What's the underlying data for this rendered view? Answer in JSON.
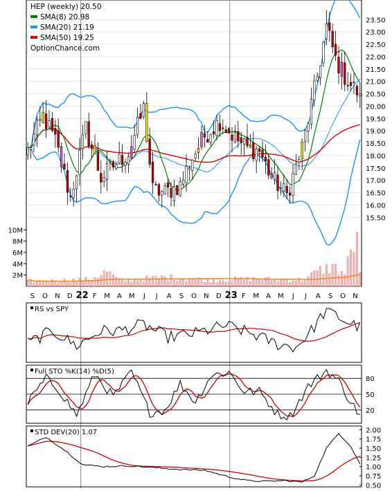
{
  "colors": {
    "background": "#ffffff",
    "frame": "#000000",
    "grid": "#dddddd",
    "candle_up": "#000000",
    "candle_down": "#cc0000",
    "sma8": "#008000",
    "sma20": "#1e90ff",
    "sma50": "#dd0000",
    "highlight_yellow": "#ffee00",
    "highlight_magenta": "#dd66cc",
    "volume_bar": "#f2b3b3",
    "volume_avg": "#ff7f00",
    "rs_line": "#000000",
    "rs_ma": "#cc0000",
    "sto_k": "#000000",
    "sto_d": "#cc0000",
    "std_line": "#000000",
    "std_ma": "#cc0000"
  },
  "legend": [
    {
      "label": "HEP (weekly) 20.50",
      "icon": "none",
      "color": "#000000"
    },
    {
      "label": "SMA(8) 20.98",
      "icon": "legend-swatch",
      "color": "#008000"
    },
    {
      "label": "SMA(20) 21.19",
      "icon": "legend-swatch",
      "color": "#1e90ff"
    },
    {
      "label": "SMA(50) 19.25",
      "icon": "legend-swatch",
      "color": "#dd0000"
    },
    {
      "label": "OptionChance.com",
      "icon": "none",
      "color": "#000000"
    }
  ],
  "chart_data": [
    {
      "type": "candlestick",
      "title": "HEP (weekly) 20.50",
      "x_axis": {
        "labels": [
          "S",
          "O",
          "N",
          "D",
          "22",
          "F",
          "M",
          "A",
          "M",
          "J",
          "J",
          "A",
          "S",
          "O",
          "N",
          "D",
          "23",
          "F",
          "M",
          "A",
          "M",
          "J",
          "J",
          "A",
          "S",
          "O",
          "N"
        ],
        "bold": [
          "22",
          "23"
        ]
      },
      "y_axis": {
        "ticks": [
          15.5,
          16.0,
          16.5,
          17.0,
          17.5,
          18.0,
          18.5,
          19.0,
          19.5,
          20.0,
          20.5,
          21.0,
          21.5,
          22.0,
          22.5,
          23.0,
          23.5
        ],
        "range": [
          15.2,
          23.9
        ]
      },
      "series": [
        {
          "name": "HEP (weekly)",
          "last": 20.5,
          "ohlc_anchors": [
            {
              "t": 0,
              "c": 18.2
            },
            {
              "t": 5,
              "c": 19.6
            },
            {
              "t": 9,
              "c": 18.6
            },
            {
              "t": 14,
              "c": 16.3
            },
            {
              "t": 19,
              "c": 19.1
            },
            {
              "t": 24,
              "c": 17.1
            },
            {
              "t": 28,
              "c": 17.6
            },
            {
              "t": 33,
              "c": 18.1
            },
            {
              "t": 38,
              "c": 19.9
            },
            {
              "t": 41,
              "c": 16.6
            },
            {
              "t": 45,
              "c": 16.5
            },
            {
              "t": 50,
              "c": 16.8
            },
            {
              "t": 53,
              "c": 17.7
            },
            {
              "t": 58,
              "c": 18.8
            },
            {
              "t": 63,
              "c": 19.4
            },
            {
              "t": 68,
              "c": 18.7
            },
            {
              "t": 72,
              "c": 18.3
            },
            {
              "t": 76,
              "c": 18.2
            },
            {
              "t": 80,
              "c": 17.1
            },
            {
              "t": 85,
              "c": 16.4
            },
            {
              "t": 90,
              "c": 18.3
            },
            {
              "t": 95,
              "c": 21.2
            },
            {
              "t": 98,
              "c": 23.2
            },
            {
              "t": 101,
              "c": 21.9
            },
            {
              "t": 104,
              "c": 21.2
            },
            {
              "t": 107,
              "c": 20.7
            },
            {
              "t": 109,
              "c": 20.5
            }
          ]
        },
        {
          "name": "SMA(8)",
          "last": 20.98
        },
        {
          "name": "SMA(20)",
          "last": 21.19
        },
        {
          "name": "SMA(50)",
          "last": 19.25
        }
      ]
    },
    {
      "type": "bar",
      "title": "",
      "y_axis": {
        "ticks": [
          {
            "v": 2000000,
            "label": "2M"
          },
          {
            "v": 4000000,
            "label": "4M"
          },
          {
            "v": 6000000,
            "label": "6M"
          },
          {
            "v": 8000000,
            "label": "8M"
          },
          {
            "v": 10000000,
            "label": "10M"
          }
        ],
        "range": [
          0,
          11500000
        ]
      },
      "series": [
        {
          "name": "Volume",
          "anchors": [
            {
              "t": 0,
              "v": 0.8
            },
            {
              "t": 20,
              "v": 1.2
            },
            {
              "t": 26,
              "v": 2.6
            },
            {
              "t": 30,
              "v": 1.0
            },
            {
              "t": 45,
              "v": 1.6
            },
            {
              "t": 60,
              "v": 1.1
            },
            {
              "t": 75,
              "v": 1.3
            },
            {
              "t": 90,
              "v": 1.1
            },
            {
              "t": 96,
              "v": 2.8
            },
            {
              "t": 100,
              "v": 3.5
            },
            {
              "t": 104,
              "v": 2.2
            },
            {
              "t": 108,
              "v": 9.6
            },
            {
              "t": 109,
              "v": 3.0
            }
          ]
        }
      ]
    },
    {
      "type": "line",
      "title": "RS vs SPY",
      "series": [
        {
          "name": "RS vs SPY",
          "anchors": [
            {
              "t": 0,
              "v": 0.3
            },
            {
              "t": 8,
              "v": 0.55
            },
            {
              "t": 16,
              "v": 0.25
            },
            {
              "t": 24,
              "v": 0.55
            },
            {
              "t": 30,
              "v": 0.55
            },
            {
              "t": 38,
              "v": 0.68
            },
            {
              "t": 46,
              "v": 0.42
            },
            {
              "t": 55,
              "v": 0.5
            },
            {
              "t": 65,
              "v": 0.66
            },
            {
              "t": 74,
              "v": 0.48
            },
            {
              "t": 82,
              "v": 0.28
            },
            {
              "t": 88,
              "v": 0.22
            },
            {
              "t": 93,
              "v": 0.55
            },
            {
              "t": 98,
              "v": 0.98
            },
            {
              "t": 104,
              "v": 0.75
            },
            {
              "t": 109,
              "v": 0.62
            }
          ]
        }
      ]
    },
    {
      "type": "line",
      "title": "Full STO %K(14) %D(5)",
      "y_axis": {
        "ticks": [
          20,
          50,
          80
        ],
        "range": [
          0,
          100
        ]
      },
      "series": [
        {
          "name": "%K",
          "anchors": [
            {
              "t": 0,
              "v": 35
            },
            {
              "t": 6,
              "v": 80
            },
            {
              "t": 10,
              "v": 60
            },
            {
              "t": 16,
              "v": 10
            },
            {
              "t": 22,
              "v": 88
            },
            {
              "t": 28,
              "v": 45
            },
            {
              "t": 34,
              "v": 92
            },
            {
              "t": 40,
              "v": 15
            },
            {
              "t": 45,
              "v": 20
            },
            {
              "t": 50,
              "v": 70
            },
            {
              "t": 55,
              "v": 35
            },
            {
              "t": 60,
              "v": 85
            },
            {
              "t": 66,
              "v": 92
            },
            {
              "t": 71,
              "v": 55
            },
            {
              "t": 76,
              "v": 55
            },
            {
              "t": 82,
              "v": 12
            },
            {
              "t": 86,
              "v": 8
            },
            {
              "t": 92,
              "v": 65
            },
            {
              "t": 98,
              "v": 95
            },
            {
              "t": 102,
              "v": 75
            },
            {
              "t": 106,
              "v": 35
            },
            {
              "t": 109,
              "v": 10
            }
          ]
        }
      ]
    },
    {
      "type": "line",
      "title": "STD DEV(20) 1.07",
      "y_axis": {
        "ticks": [
          0.5,
          0.75,
          1.0,
          1.25,
          1.5,
          1.75,
          2.0
        ],
        "range": [
          0.45,
          2.1
        ]
      },
      "series": [
        {
          "name": "STD DEV(20)",
          "last": 1.07,
          "anchors": [
            {
              "t": 0,
              "v": 1.55
            },
            {
              "t": 6,
              "v": 1.8
            },
            {
              "t": 12,
              "v": 1.45
            },
            {
              "t": 18,
              "v": 1.05
            },
            {
              "t": 25,
              "v": 1.0
            },
            {
              "t": 33,
              "v": 1.02
            },
            {
              "t": 40,
              "v": 0.98
            },
            {
              "t": 50,
              "v": 0.92
            },
            {
              "t": 58,
              "v": 0.9
            },
            {
              "t": 66,
              "v": 0.72
            },
            {
              "t": 72,
              "v": 0.62
            },
            {
              "t": 78,
              "v": 0.6
            },
            {
              "t": 84,
              "v": 0.62
            },
            {
              "t": 90,
              "v": 0.58
            },
            {
              "t": 94,
              "v": 0.75
            },
            {
              "t": 98,
              "v": 1.5
            },
            {
              "t": 102,
              "v": 1.9
            },
            {
              "t": 106,
              "v": 1.55
            },
            {
              "t": 109,
              "v": 1.07
            }
          ]
        }
      ]
    }
  ]
}
